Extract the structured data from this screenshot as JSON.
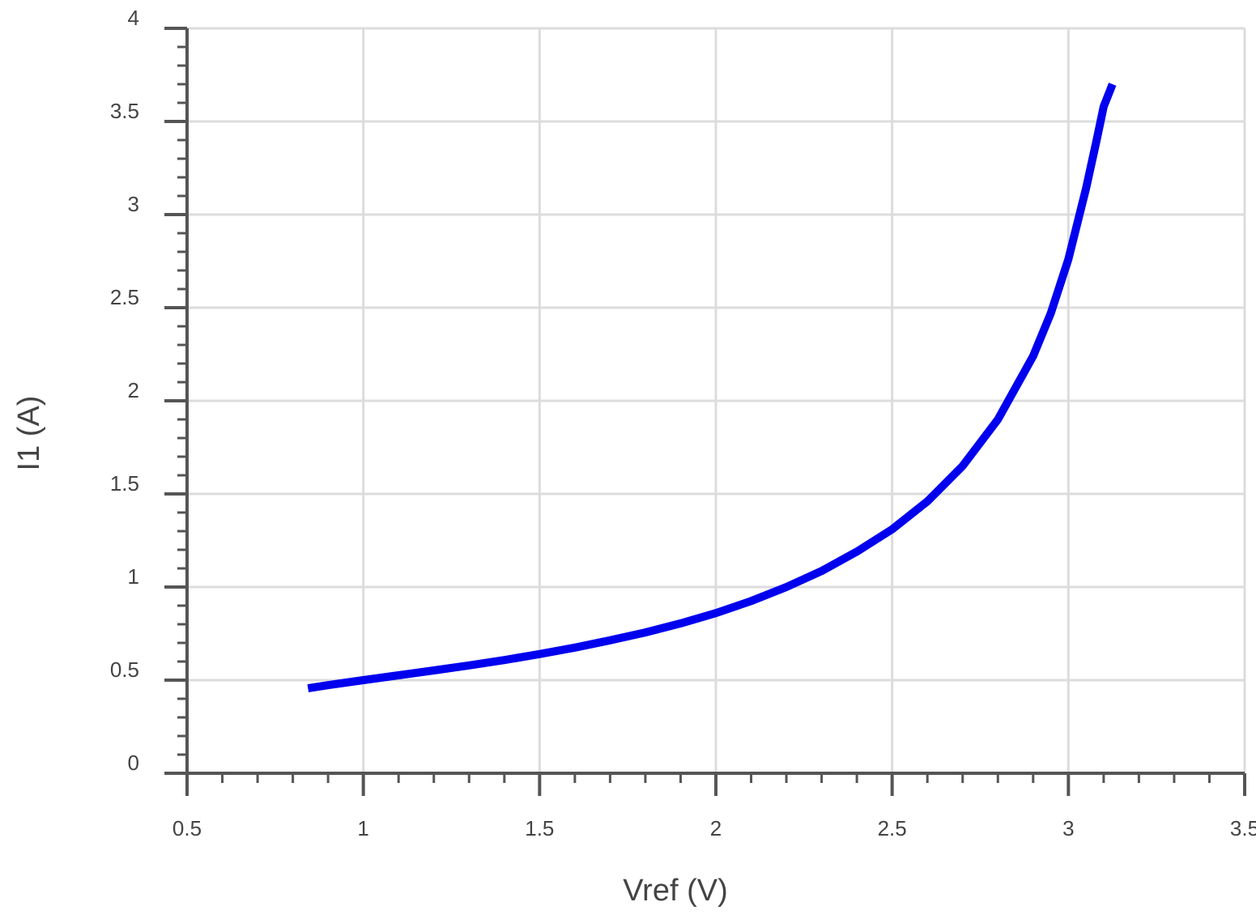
{
  "chart_data": {
    "type": "line",
    "title": "",
    "xlabel": "Vref (V)",
    "ylabel": "I1 (A)",
    "xlim": [
      0.5,
      3.5
    ],
    "ylim": [
      0,
      4
    ],
    "x_ticks": [
      0.5,
      1,
      1.5,
      2,
      2.5,
      3,
      3.5
    ],
    "y_ticks": [
      0,
      0.5,
      1,
      1.5,
      2,
      2.5,
      3,
      3.5,
      4
    ],
    "x_tick_labels": [
      "0.5",
      "1",
      "1.5",
      "2",
      "2.5",
      "3",
      "3.5"
    ],
    "y_tick_labels": [
      "0",
      "0.5",
      "1",
      "1.5",
      "2",
      "2.5",
      "3",
      "3.5",
      "4"
    ],
    "grid": true,
    "series": [
      {
        "color": "#0000ee",
        "x": [
          0.843,
          0.9,
          1.0,
          1.1,
          1.2,
          1.3,
          1.4,
          1.5,
          1.6,
          1.7,
          1.8,
          1.9,
          2.0,
          2.1,
          2.2,
          2.3,
          2.4,
          2.5,
          2.6,
          2.7,
          2.8,
          2.9,
          2.95,
          3.0,
          3.05,
          3.08,
          3.1,
          3.125
        ],
        "y": [
          0.456,
          0.473,
          0.5,
          0.526,
          0.552,
          0.579,
          0.608,
          0.64,
          0.675,
          0.714,
          0.756,
          0.805,
          0.86,
          0.925,
          1.0,
          1.086,
          1.19,
          1.31,
          1.46,
          1.65,
          1.9,
          2.24,
          2.47,
          2.76,
          3.14,
          3.4,
          3.58,
          3.7
        ]
      }
    ]
  }
}
